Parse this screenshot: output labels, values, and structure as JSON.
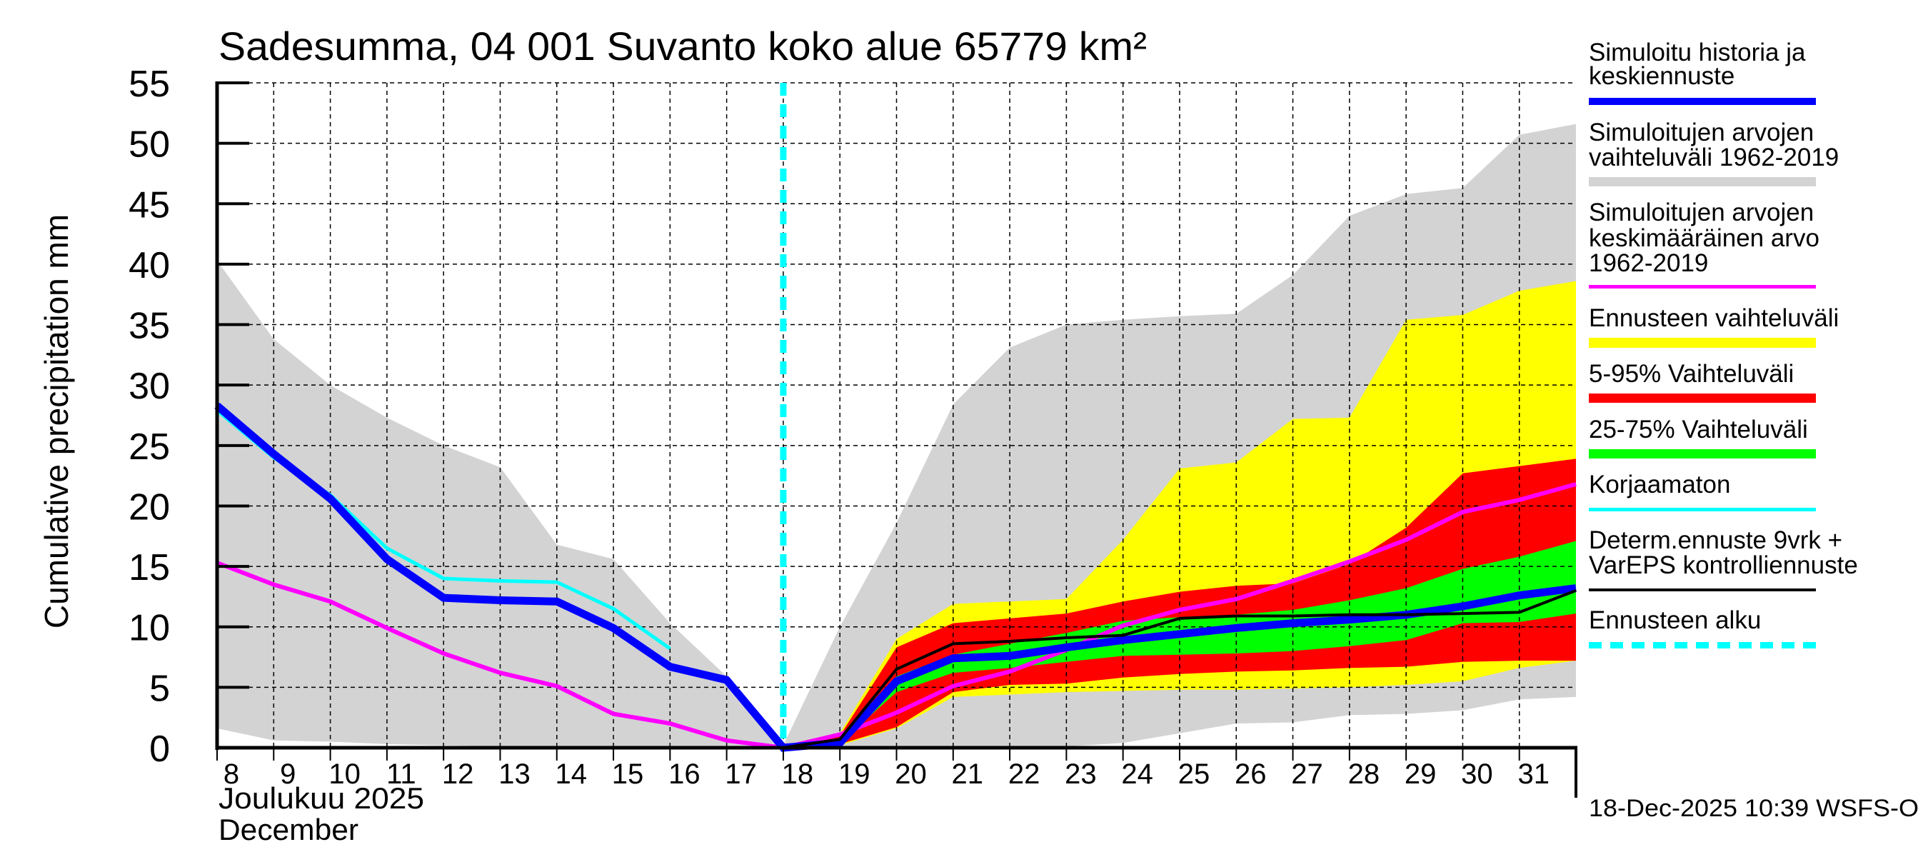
{
  "chart_data": {
    "type": "area",
    "title": "Sadesumma, 04 001 Suvanto koko alue 65779 km²",
    "ylabel": "Cumulative precipitation   mm",
    "xlabel_line1": "Joulukuu  2025",
    "xlabel_line2": "December",
    "timestamp": "18-Dec-2025 10:39 WSFS-O",
    "ylim": [
      0,
      55
    ],
    "xlim": [
      8,
      32
    ],
    "grid": true,
    "legend_position": "right",
    "y_ticks": [
      "0",
      "5",
      "10",
      "15",
      "20",
      "25",
      "30",
      "35",
      "40",
      "45",
      "50",
      "55"
    ],
    "x_ticks": [
      "8",
      "9",
      "10",
      "11",
      "12",
      "13",
      "14",
      "15",
      "16",
      "17",
      "18",
      "19",
      "20",
      "21",
      "22",
      "23",
      "24",
      "25",
      "26",
      "27",
      "28",
      "29",
      "30",
      "31"
    ],
    "forecast_start_day": 18,
    "colors": {
      "history": "#0000ff",
      "sim_range": "#d3d3d3",
      "sim_mean": "#ff00ff",
      "forecast_range": "#ffff00",
      "p5_95": "#ff0000",
      "p25_75": "#00ff00",
      "uncorrected": "#00ffff",
      "determ": "#000000",
      "forecast_start": "#00ffff"
    },
    "legend": [
      {
        "key": "history",
        "lines": [
          "Simuloitu historia ja",
          "keskiennuste"
        ]
      },
      {
        "key": "sim_range",
        "lines": [
          "Simuloitujen arvojen",
          "vaihteluväli 1962-2019"
        ]
      },
      {
        "key": "sim_mean",
        "lines": [
          "Simuloitujen arvojen",
          "keskimääräinen arvo",
          "   1962-2019"
        ]
      },
      {
        "key": "forecast_range",
        "lines": [
          "Ennusteen vaihteluväli"
        ]
      },
      {
        "key": "p5_95",
        "lines": [
          "5-95% Vaihteluväli"
        ]
      },
      {
        "key": "p25_75",
        "lines": [
          "25-75% Vaihteluväli"
        ]
      },
      {
        "key": "uncorrected",
        "lines": [
          "Korjaamaton"
        ]
      },
      {
        "key": "determ",
        "lines": [
          "Determ.ennuste 9vrk +",
          "VarEPS kontrolliennuste"
        ]
      },
      {
        "key": "forecast_start",
        "lines": [
          "Ennusteen alku"
        ]
      }
    ],
    "bands": {
      "sim_range": {
        "x": [
          8,
          9,
          10,
          11,
          12,
          13,
          14,
          15,
          16,
          17,
          18,
          19,
          20,
          21,
          22,
          23,
          24,
          25,
          26,
          27,
          28,
          29,
          30,
          31,
          32
        ],
        "upper": [
          40.3,
          33.8,
          30.0,
          27.3,
          25.0,
          23.2,
          16.8,
          15.6,
          10.3,
          5.9,
          0.2,
          10.0,
          18.6,
          28.4,
          33.1,
          35.0,
          35.4,
          35.7,
          35.9,
          39.1,
          44.0,
          45.8,
          46.3,
          50.7,
          51.6
        ],
        "lower": [
          1.6,
          0.6,
          0.5,
          0.3,
          0.2,
          0.1,
          0.0,
          0.0,
          0.0,
          0.0,
          0.0,
          0.0,
          0.0,
          0.0,
          0.0,
          0.1,
          0.4,
          1.2,
          2.0,
          2.1,
          2.7,
          2.8,
          3.1,
          4.0,
          4.2
        ]
      },
      "forecast_range": {
        "x": [
          18,
          19,
          20,
          21,
          22,
          23,
          24,
          25,
          26,
          27,
          28,
          29,
          30,
          31,
          32
        ],
        "upper": [
          0.0,
          1.2,
          9.0,
          11.9,
          12.1,
          12.3,
          17.2,
          23.1,
          23.6,
          27.2,
          27.3,
          35.4,
          35.8,
          37.8,
          38.6
        ],
        "lower": [
          0.0,
          0.2,
          1.6,
          4.2,
          4.4,
          4.6,
          4.7,
          4.8,
          4.8,
          4.9,
          5.0,
          5.2,
          5.5,
          6.6,
          7.2
        ]
      },
      "p5_95": {
        "x": [
          18,
          19,
          20,
          21,
          22,
          23,
          24,
          25,
          26,
          27,
          28,
          29,
          30,
          31,
          32
        ],
        "upper": [
          0.0,
          1.0,
          8.3,
          10.3,
          10.7,
          11.1,
          12.1,
          12.9,
          13.4,
          13.6,
          15.2,
          18.2,
          22.7,
          23.3,
          23.9
        ],
        "lower": [
          0.0,
          0.3,
          1.7,
          4.6,
          5.2,
          5.3,
          5.8,
          6.1,
          6.3,
          6.4,
          6.6,
          6.7,
          7.1,
          7.2,
          7.2
        ]
      },
      "p25_75": {
        "x": [
          18,
          19,
          20,
          21,
          22,
          23,
          24,
          25,
          26,
          27,
          28,
          29,
          30,
          31,
          32
        ],
        "upper": [
          0.0,
          0.7,
          5.9,
          7.7,
          8.6,
          9.5,
          10.5,
          10.8,
          11.0,
          11.4,
          12.2,
          13.2,
          14.8,
          15.8,
          17.1
        ],
        "lower": [
          0.0,
          0.4,
          4.6,
          6.2,
          6.6,
          7.1,
          7.6,
          7.7,
          7.8,
          8.0,
          8.4,
          8.9,
          10.3,
          10.4,
          11.1
        ]
      }
    },
    "series": [
      {
        "key": "sim_mean",
        "name": "Simuloitujen arvojen keskimääräinen arvo 1962-2019",
        "x": [
          8,
          9,
          10,
          11,
          12,
          13,
          14,
          15,
          16,
          17,
          18,
          19,
          20,
          21,
          22,
          23,
          24,
          25,
          26,
          27,
          28,
          29,
          30,
          31,
          32
        ],
        "values": [
          15.3,
          13.5,
          12.1,
          9.9,
          7.8,
          6.2,
          5.1,
          2.8,
          2.0,
          0.6,
          0.0,
          1.1,
          2.9,
          5.1,
          6.3,
          8.1,
          10.1,
          11.4,
          12.3,
          13.8,
          15.4,
          17.2,
          19.5,
          20.5,
          21.8
        ]
      },
      {
        "key": "uncorrected",
        "name": "Korjaamaton",
        "x": [
          8,
          9,
          10,
          11,
          12,
          13,
          14,
          15,
          16
        ],
        "values": [
          27.9,
          24.0,
          20.9,
          16.5,
          14.0,
          13.8,
          13.7,
          11.5,
          8.2
        ]
      },
      {
        "key": "history",
        "name": "Simuloitu historia ja keskiennuste",
        "x": [
          8,
          9,
          10,
          11,
          12,
          13,
          14,
          15,
          16,
          17,
          18,
          19,
          20,
          21,
          22,
          23,
          24,
          25,
          26,
          27,
          28,
          29,
          30,
          31,
          32
        ],
        "values": [
          28.3,
          24.3,
          20.6,
          15.6,
          12.4,
          12.2,
          12.1,
          9.9,
          6.7,
          5.6,
          0.0,
          0.4,
          5.5,
          7.4,
          7.6,
          8.3,
          8.9,
          9.4,
          9.9,
          10.3,
          10.6,
          11.0,
          11.7,
          12.6,
          13.2
        ]
      },
      {
        "key": "determ",
        "name": "Determ.ennuste 9vrk + VarEPS kontrolliennuste",
        "x": [
          18,
          19,
          20,
          21,
          22,
          23,
          24,
          25,
          26,
          27,
          28,
          29,
          30,
          31,
          32
        ],
        "values": [
          0.0,
          0.7,
          6.5,
          8.6,
          8.8,
          9.1,
          9.3,
          10.7,
          10.9,
          10.9,
          11.0,
          11.0,
          11.1,
          11.2,
          13.0
        ]
      }
    ]
  }
}
